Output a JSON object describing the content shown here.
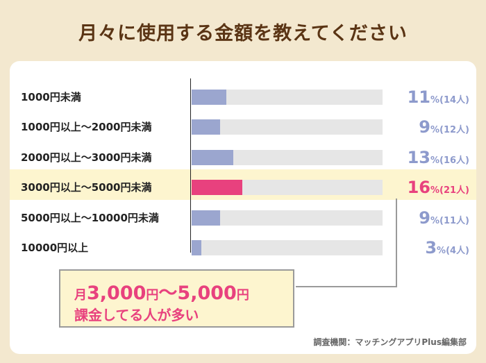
{
  "title": "月々に使用する金額を教えてください",
  "chart_data": {
    "type": "bar",
    "orientation": "horizontal",
    "categories": [
      "1000円未満",
      "1000円以上〜2000円未満",
      "2000円以上〜3000円未満",
      "3000円以上〜5000円未満",
      "5000円以上〜10000円未満",
      "10000円以上"
    ],
    "values": [
      11,
      9,
      13,
      16,
      9,
      3
    ],
    "counts": [
      14,
      12,
      16,
      21,
      11,
      4
    ],
    "percent_unit": "%",
    "value_labels": [
      "(14人)",
      "(12人)",
      "(16人)",
      "(21人)",
      "(11人)",
      "(4人)"
    ],
    "highlight_index": 3,
    "xlim": [
      0,
      60
    ],
    "colors": {
      "default": "#9ba6cf",
      "highlight": "#e8417e",
      "track": "#e6e6e6"
    }
  },
  "callout": {
    "line1_prefix": "月",
    "line1_from": "3,000",
    "line1_yen1": "円",
    "line1_tilde": "〜",
    "line1_to": "5,000",
    "line1_yen2": "円",
    "line2": "課金してる人が多い"
  },
  "source": "調査機関：マッチングアプリPlus編集部"
}
